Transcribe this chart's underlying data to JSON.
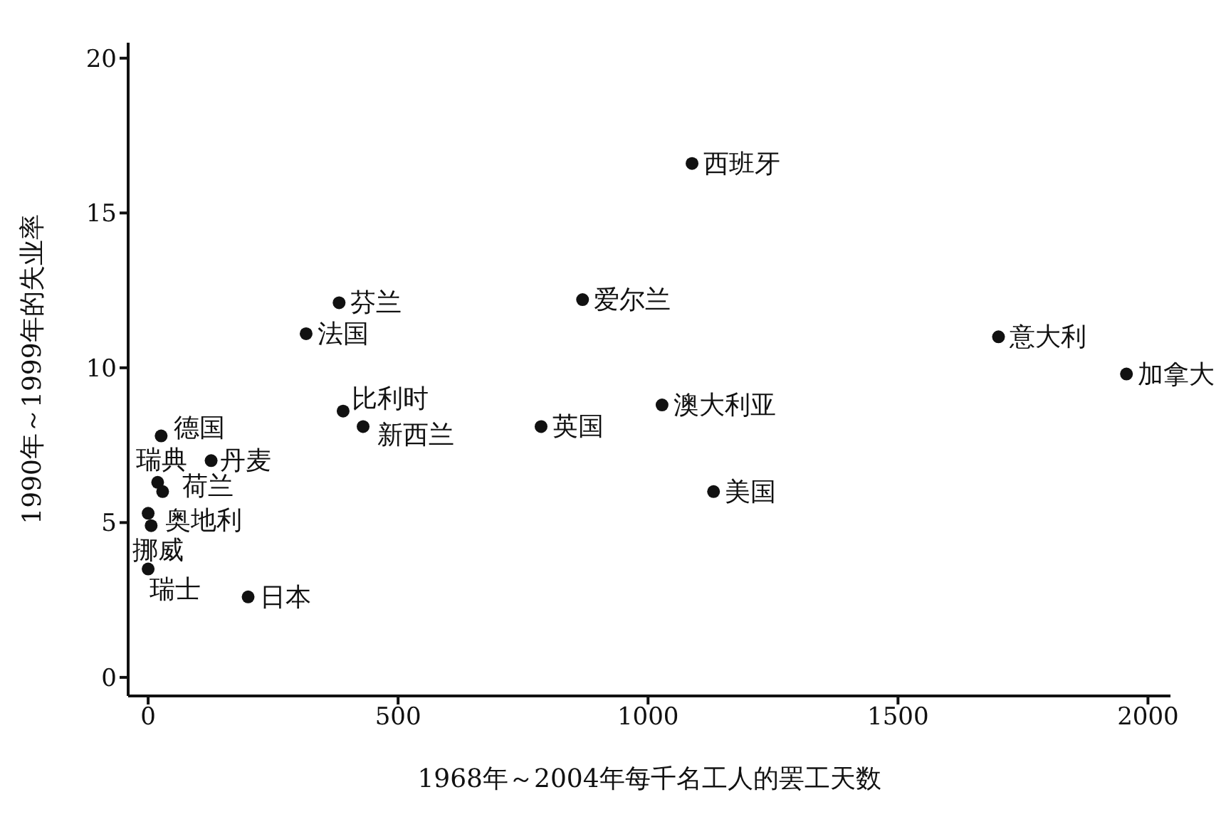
{
  "chart_data": {
    "type": "scatter",
    "xlabel": "1968年～2004年每千名工人的罢工天数",
    "ylabel": "1990年～1999年的失业率",
    "xlim": [
      -40,
      2045
    ],
    "ylim": [
      -0.6,
      20.5
    ],
    "xticks": [
      0,
      500,
      1000,
      1500,
      2000
    ],
    "yticks": [
      0,
      5,
      10,
      15,
      20
    ],
    "marker": "circle",
    "series": [
      {
        "color": "#111111",
        "x": [
          1088,
          382,
          869,
          316,
          1701,
          1957,
          390,
          430,
          786,
          1028,
          1131,
          26,
          126,
          19,
          29,
          0,
          6,
          0,
          200
        ],
        "values": [
          16.6,
          12.1,
          12.2,
          11.1,
          11.0,
          9.8,
          8.6,
          8.1,
          8.1,
          8.8,
          6.0,
          7.8,
          7.0,
          6.3,
          6.0,
          5.3,
          4.9,
          3.5,
          2.6
        ],
        "value_labels": [
          "西班牙",
          "芬兰",
          "爱尔兰",
          "法国",
          "意大利",
          "加拿大",
          "比利时",
          "新西兰",
          "英国",
          "澳大利亚",
          "美国",
          "德国",
          "丹麦",
          "瑞典",
          "荷兰",
          "奥地利",
          "挪威",
          "瑞士",
          "日本"
        ]
      }
    ]
  }
}
